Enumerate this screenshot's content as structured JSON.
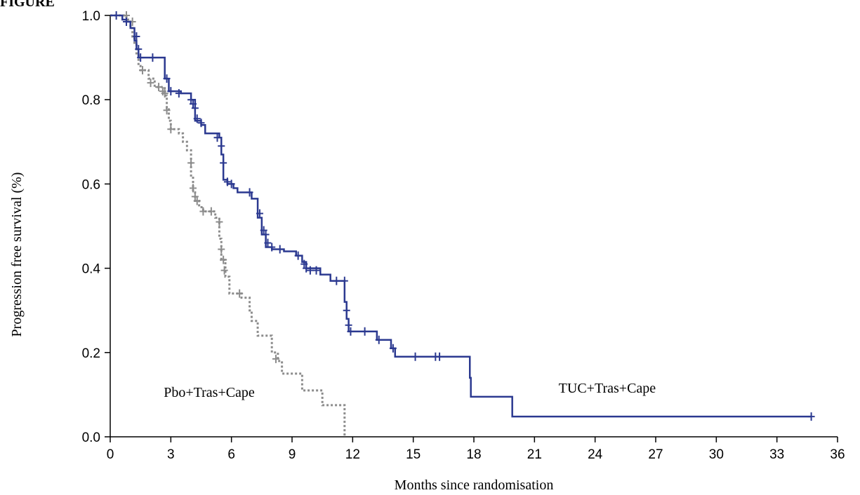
{
  "corner_label": "FIGURE",
  "chart_data": {
    "type": "line",
    "title": "",
    "xlabel": "Months since randomisation",
    "ylabel": "Progression free survival (%)",
    "xlim": [
      0,
      36
    ],
    "ylim": [
      0,
      1.0
    ],
    "xticks": [
      0,
      3,
      6,
      9,
      12,
      15,
      18,
      21,
      24,
      27,
      30,
      33,
      36
    ],
    "xtick_labels": [
      "0",
      "3",
      "6",
      "9",
      "12",
      "15",
      "18",
      "21",
      "24",
      "27",
      "30",
      "33",
      "36"
    ],
    "yticks": [
      0,
      0.2,
      0.4,
      0.6,
      0.8,
      1.0
    ],
    "ytick_labels": [
      "0.0",
      "0.2",
      "0.4",
      "0.6",
      "0.8",
      "1.0"
    ],
    "grid": false,
    "legend": "none",
    "series": [
      {
        "name": "TUC+Tras+Cape",
        "color": "#2b3990",
        "style": "solid",
        "steps": [
          [
            0,
            1.0
          ],
          [
            0.6,
            0.99
          ],
          [
            0.8,
            0.985
          ],
          [
            1.0,
            0.97
          ],
          [
            1.2,
            0.94
          ],
          [
            1.3,
            0.92
          ],
          [
            1.4,
            0.9
          ],
          [
            2.7,
            0.85
          ],
          [
            2.9,
            0.82
          ],
          [
            3.5,
            0.815
          ],
          [
            4.0,
            0.8
          ],
          [
            4.2,
            0.75
          ],
          [
            4.5,
            0.74
          ],
          [
            4.7,
            0.72
          ],
          [
            5.4,
            0.71
          ],
          [
            5.5,
            0.67
          ],
          [
            5.6,
            0.61
          ],
          [
            5.8,
            0.6
          ],
          [
            6.1,
            0.59
          ],
          [
            6.3,
            0.58
          ],
          [
            7.0,
            0.565
          ],
          [
            7.3,
            0.52
          ],
          [
            7.5,
            0.48
          ],
          [
            7.7,
            0.45
          ],
          [
            8.0,
            0.445
          ],
          [
            8.6,
            0.44
          ],
          [
            9.2,
            0.43
          ],
          [
            9.5,
            0.415
          ],
          [
            9.7,
            0.4
          ],
          [
            10.4,
            0.385
          ],
          [
            10.9,
            0.37
          ],
          [
            11.6,
            0.32
          ],
          [
            11.7,
            0.28
          ],
          [
            11.8,
            0.25
          ],
          [
            13.2,
            0.23
          ],
          [
            13.9,
            0.21
          ],
          [
            14.1,
            0.19
          ],
          [
            17.8,
            0.14
          ],
          [
            17.85,
            0.095
          ],
          [
            19.9,
            0.048
          ],
          [
            34.7,
            0.048
          ]
        ],
        "censor": [
          [
            0.3,
            1.0
          ],
          [
            0.8,
            0.985
          ],
          [
            1.3,
            0.95
          ],
          [
            1.4,
            0.92
          ],
          [
            1.5,
            0.9
          ],
          [
            2.1,
            0.9
          ],
          [
            2.8,
            0.85
          ],
          [
            3.0,
            0.82
          ],
          [
            3.4,
            0.815
          ],
          [
            4.0,
            0.8
          ],
          [
            4.1,
            0.79
          ],
          [
            4.2,
            0.78
          ],
          [
            4.3,
            0.755
          ],
          [
            4.5,
            0.745
          ],
          [
            5.3,
            0.71
          ],
          [
            5.5,
            0.69
          ],
          [
            5.6,
            0.65
          ],
          [
            5.8,
            0.605
          ],
          [
            6.0,
            0.6
          ],
          [
            6.9,
            0.58
          ],
          [
            7.4,
            0.53
          ],
          [
            7.6,
            0.49
          ],
          [
            7.7,
            0.48
          ],
          [
            7.8,
            0.46
          ],
          [
            8.0,
            0.45
          ],
          [
            8.4,
            0.445
          ],
          [
            9.3,
            0.43
          ],
          [
            9.6,
            0.41
          ],
          [
            9.7,
            0.4
          ],
          [
            9.9,
            0.395
          ],
          [
            10.2,
            0.395
          ],
          [
            11.2,
            0.37
          ],
          [
            11.6,
            0.37
          ],
          [
            11.7,
            0.3
          ],
          [
            11.8,
            0.265
          ],
          [
            11.9,
            0.25
          ],
          [
            12.6,
            0.25
          ],
          [
            13.3,
            0.23
          ],
          [
            14.0,
            0.21
          ],
          [
            15.1,
            0.19
          ],
          [
            16.1,
            0.19
          ],
          [
            16.3,
            0.19
          ],
          [
            34.7,
            0.048
          ]
        ]
      },
      {
        "name": "Pbo+Tras+Cape",
        "color": "#8c8c8c",
        "style": "dotted",
        "steps": [
          [
            0,
            1.0
          ],
          [
            0.8,
            0.99
          ],
          [
            1.0,
            0.97
          ],
          [
            1.1,
            0.95
          ],
          [
            1.2,
            0.93
          ],
          [
            1.3,
            0.91
          ],
          [
            1.4,
            0.88
          ],
          [
            1.5,
            0.87
          ],
          [
            1.9,
            0.85
          ],
          [
            2.2,
            0.83
          ],
          [
            2.7,
            0.81
          ],
          [
            2.8,
            0.78
          ],
          [
            2.9,
            0.75
          ],
          [
            3.0,
            0.73
          ],
          [
            3.4,
            0.72
          ],
          [
            3.6,
            0.7
          ],
          [
            3.8,
            0.68
          ],
          [
            4.0,
            0.62
          ],
          [
            4.1,
            0.58
          ],
          [
            4.2,
            0.56
          ],
          [
            4.4,
            0.545
          ],
          [
            4.6,
            0.535
          ],
          [
            5.2,
            0.52
          ],
          [
            5.4,
            0.47
          ],
          [
            5.5,
            0.42
          ],
          [
            5.7,
            0.38
          ],
          [
            5.9,
            0.34
          ],
          [
            6.5,
            0.33
          ],
          [
            6.9,
            0.3
          ],
          [
            7.0,
            0.275
          ],
          [
            7.3,
            0.24
          ],
          [
            8.0,
            0.2
          ],
          [
            8.3,
            0.18
          ],
          [
            8.5,
            0.15
          ],
          [
            9.1,
            0.15
          ],
          [
            9.5,
            0.11
          ],
          [
            10.1,
            0.11
          ],
          [
            10.5,
            0.075
          ],
          [
            11.4,
            0.075
          ],
          [
            11.6,
            0.0
          ]
        ],
        "censor": [
          [
            0.8,
            1.0
          ],
          [
            1.1,
            0.985
          ],
          [
            1.3,
            0.95
          ],
          [
            1.6,
            0.87
          ],
          [
            2.0,
            0.84
          ],
          [
            2.4,
            0.83
          ],
          [
            2.6,
            0.82
          ],
          [
            2.7,
            0.815
          ],
          [
            2.8,
            0.775
          ],
          [
            3.0,
            0.73
          ],
          [
            4.0,
            0.65
          ],
          [
            4.1,
            0.59
          ],
          [
            4.2,
            0.57
          ],
          [
            4.3,
            0.56
          ],
          [
            4.6,
            0.535
          ],
          [
            5.0,
            0.535
          ],
          [
            5.4,
            0.51
          ],
          [
            5.5,
            0.445
          ],
          [
            5.6,
            0.42
          ],
          [
            5.65,
            0.395
          ],
          [
            6.4,
            0.34
          ],
          [
            8.2,
            0.185
          ]
        ]
      }
    ],
    "annotations": [
      {
        "text": "Pbo+Tras+Cape",
        "x": 4.9,
        "y": 0.095
      },
      {
        "text": "TUC+Tras+Cape",
        "x": 24.6,
        "y": 0.105
      }
    ]
  }
}
